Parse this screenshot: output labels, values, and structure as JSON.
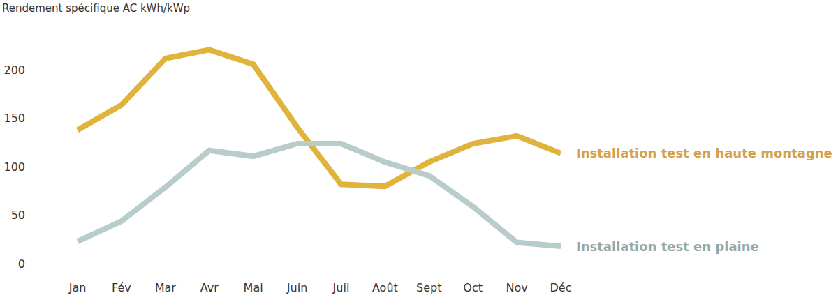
{
  "chart_data": {
    "type": "line",
    "y_label": "Rendement spécifique AC kWh/kWp",
    "categories": [
      "Jan",
      "Fév",
      "Mar",
      "Avr",
      "Mai",
      "Juin",
      "Juil",
      "Août",
      "Sept",
      "Oct",
      "Nov",
      "Déc"
    ],
    "series": [
      {
        "name": "Installation test en haute montagne",
        "color": "#e0b43c",
        "values": [
          138,
          164,
          212,
          221,
          206,
          141,
          82,
          80,
          105,
          124,
          132,
          114
        ]
      },
      {
        "name": "Installation test en plaine",
        "color": "#b8cccb",
        "values": [
          23,
          44,
          79,
          117,
          111,
          124,
          124,
          105,
          91,
          59,
          22,
          18
        ]
      }
    ],
    "ylim": [
      -10,
      240
    ],
    "yticks": [
      0,
      50,
      100,
      150,
      200
    ],
    "grid": true
  }
}
